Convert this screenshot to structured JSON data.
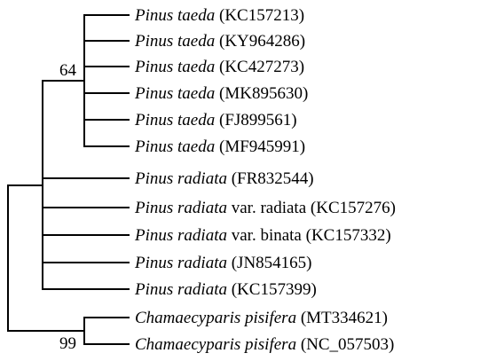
{
  "tree": {
    "taxa": [
      {
        "species": "Pinus taeda",
        "variety": "",
        "accession": "(KC157213)"
      },
      {
        "species": "Pinus taeda",
        "variety": "",
        "accession": "(KY964286)"
      },
      {
        "species": "Pinus taeda",
        "variety": "",
        "accession": "(KC427273)"
      },
      {
        "species": "Pinus taeda",
        "variety": "",
        "accession": "(MK895630)"
      },
      {
        "species": "Pinus taeda",
        "variety": "",
        "accession": "(FJ899561)"
      },
      {
        "species": "Pinus taeda",
        "variety": "",
        "accession": "(MF945991)"
      },
      {
        "species": "Pinus radiata",
        "variety": "",
        "accession": "(FR832544)"
      },
      {
        "species": "Pinus radiata",
        "variety": "var. radiata",
        "accession": "(KC157276)"
      },
      {
        "species": "Pinus radiata",
        "variety": "var. binata",
        "accession": "(KC157332)"
      },
      {
        "species": "Pinus radiata",
        "variety": "",
        "accession": "(JN854165)"
      },
      {
        "species": "Pinus radiata",
        "variety": "",
        "accession": "(KC157399)"
      },
      {
        "species": "Chamaecyparis pisifera",
        "variety": "",
        "accession": "(MT334621)"
      },
      {
        "species": "Chamaecyparis pisifera",
        "variety": "",
        "accession": "(NC_057503)"
      }
    ],
    "clades": {
      "pinus_taeda": {
        "members": [
          0,
          1,
          2,
          3,
          4,
          5
        ],
        "support": "64"
      },
      "pinus": {
        "members": [
          6,
          7,
          8,
          9,
          10
        ]
      },
      "chamaecyparis": {
        "members": [
          11,
          12
        ],
        "support": "99"
      }
    },
    "colors": {
      "branch": "#000000",
      "text": "#000000",
      "background": "#ffffff"
    }
  }
}
